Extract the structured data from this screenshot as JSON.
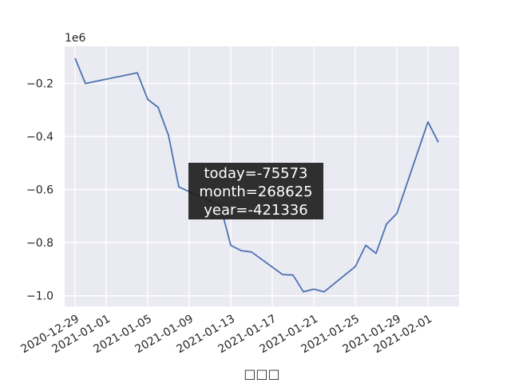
{
  "chart_data": {
    "type": "line",
    "xlabel": "□□□",
    "ylabel": "",
    "offset_label": "1e6",
    "ylim": [
      -1.04,
      -0.06
    ],
    "xlim": [
      "2020-12-28",
      "2021-02-04"
    ],
    "grid": true,
    "yticks": [
      -1.0,
      -0.8,
      -0.6,
      -0.4,
      -0.2
    ],
    "ytick_labels": [
      "−1.0",
      "−0.8",
      "−0.6",
      "−0.4",
      "−0.2"
    ],
    "xticks": [
      "2020-12-29",
      "2021-01-01",
      "2021-01-05",
      "2021-01-09",
      "2021-01-13",
      "2021-01-17",
      "2021-01-21",
      "2021-01-25",
      "2021-01-29",
      "2021-02-01"
    ],
    "series": [
      {
        "color": "#4c72b0",
        "x": [
          "2020-12-29",
          "2020-12-30",
          "2021-01-04",
          "2021-01-05",
          "2021-01-06",
          "2021-01-07",
          "2021-01-08",
          "2021-01-12",
          "2021-01-13",
          "2021-01-14",
          "2021-01-15",
          "2021-01-18",
          "2021-01-19",
          "2021-01-20",
          "2021-01-21",
          "2021-01-22",
          "2021-01-25",
          "2021-01-26",
          "2021-01-27",
          "2021-01-28",
          "2021-01-29",
          "2021-02-01",
          "2021-02-02"
        ],
        "y": [
          -0.105,
          -0.2,
          -0.16,
          -0.26,
          -0.29,
          -0.395,
          -0.59,
          -0.66,
          -0.81,
          -0.83,
          -0.835,
          -0.92,
          -0.922,
          -0.985,
          -0.975,
          -0.985,
          -0.89,
          -0.81,
          -0.84,
          -0.73,
          -0.69,
          -0.345,
          -0.421336
        ]
      }
    ],
    "tooltip": {
      "lines": [
        "today=-75573",
        "month=268625",
        "year=-421336"
      ]
    }
  }
}
